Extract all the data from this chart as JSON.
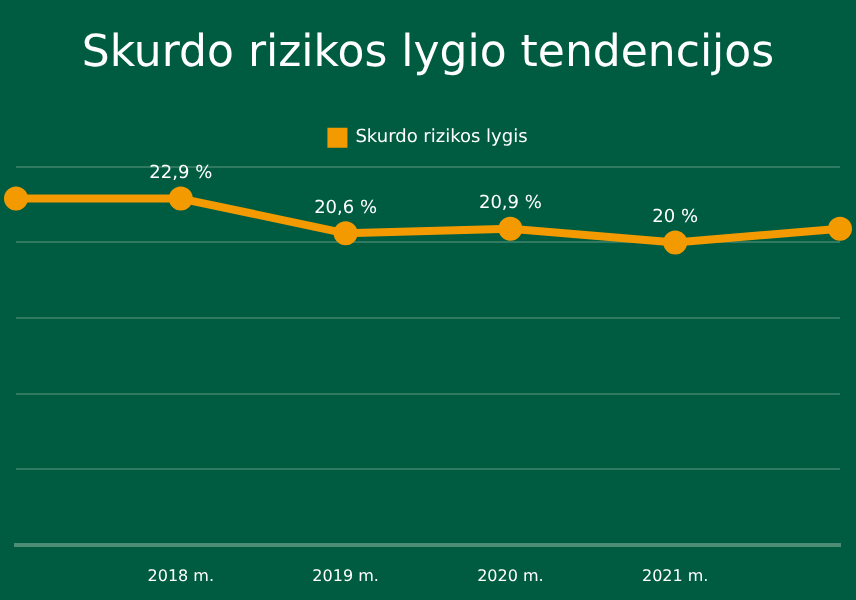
{
  "chart_data": {
    "type": "line",
    "title": "Skurdo rizikos lygio tendencijos",
    "categories": [
      null,
      "2018 m.",
      "2019 m.",
      "2020 m.",
      "2021 m.",
      null
    ],
    "series": [
      {
        "name": "Skurdo rizikos lygis",
        "color": "#f39a00",
        "values": [
          22.9,
          22.9,
          20.6,
          20.9,
          20,
          20.9
        ],
        "value_labels": [
          null,
          "22,9 %",
          "20,6 %",
          "20,9 %",
          "20 %",
          null
        ]
      }
    ],
    "ylim": [
      0,
      25
    ],
    "yticks": [
      {
        "value": 0,
        "label": null
      },
      {
        "value": 5,
        "label": null
      },
      {
        "value": 10,
        "label": null
      },
      {
        "value": 15,
        "label": null
      },
      {
        "value": 20,
        "label": null
      },
      {
        "value": 25,
        "label": null
      }
    ],
    "tick_labels": "x",
    "grid": "y",
    "legend": "top",
    "marker": "circle",
    "line_style": "solid"
  }
}
